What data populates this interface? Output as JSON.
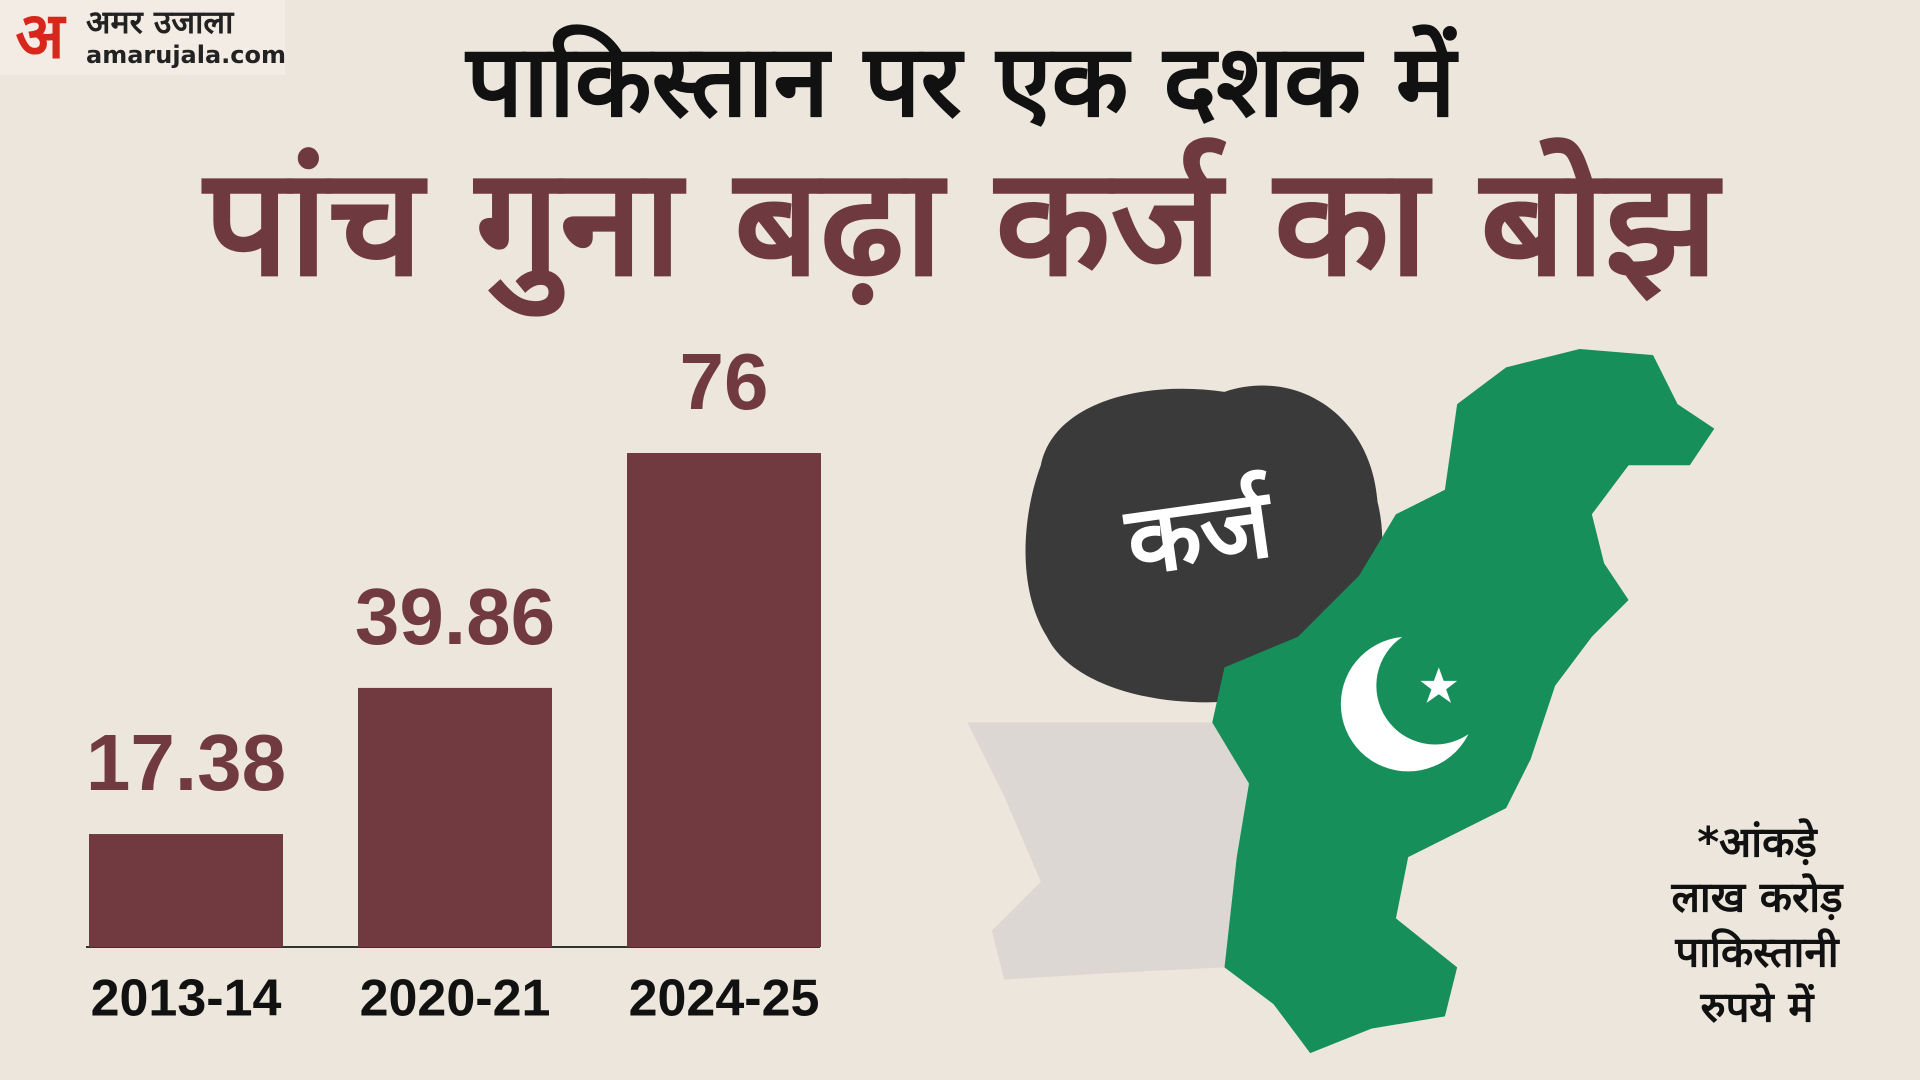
{
  "header": {
    "logo_letter": "अ",
    "logo_name": "अमर उजाला",
    "logo_site": "amarujala.com"
  },
  "chart_data": {
    "type": "bar",
    "title": "पाकिस्तान पर एक दशक में",
    "subtitle": "पांच गुना बढ़ा कर्ज का बोझ",
    "categories": [
      "2013-14",
      "2020-21",
      "2024-25"
    ],
    "values": [
      17.38,
      39.86,
      76
    ],
    "color": "#703a40"
  },
  "illustration": {
    "label": "कर्ज"
  },
  "note": {
    "lines": [
      "*आंकड़े",
      "लाख करोड़",
      "पाकिस्तानी",
      "रुपये में"
    ]
  }
}
